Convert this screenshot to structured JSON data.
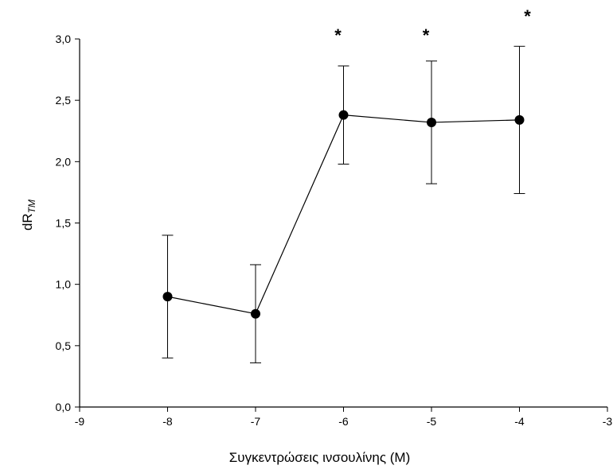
{
  "chart_data": {
    "type": "line",
    "xlabel": "Συγκεντρώσεις ινσουλίνης (M)",
    "ylabel_main": "dR",
    "ylabel_sub": "TM",
    "xlim": [
      -9,
      -3
    ],
    "ylim": [
      0,
      3
    ],
    "x_ticks": [
      -9,
      -8,
      -7,
      -6,
      -5,
      -4,
      -3
    ],
    "x_tick_labels": [
      "-9",
      "-8",
      "-7",
      "-6",
      "-5",
      "-4",
      "-3"
    ],
    "y_ticks": [
      0,
      0.5,
      1,
      1.5,
      2,
      2.5,
      3
    ],
    "y_tick_labels": [
      "0,0",
      "0,5",
      "1,0",
      "1,5",
      "2,0",
      "2,5",
      "3,0"
    ],
    "grid": false,
    "series": [
      {
        "x": [
          -8,
          -7,
          -6,
          -5,
          -4
        ],
        "y": [
          0.9,
          0.76,
          2.38,
          2.32,
          2.34
        ],
        "error": [
          0.5,
          0.4,
          0.4,
          0.5,
          0.6
        ],
        "significance": [
          "",
          "",
          "*",
          "*",
          "*"
        ]
      }
    ],
    "colors": {
      "line": "#000000",
      "marker": "#000000"
    }
  }
}
